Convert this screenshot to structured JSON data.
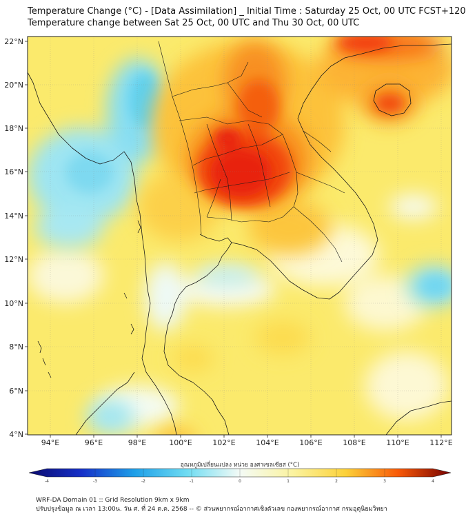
{
  "title": {
    "line1": "Temperature Change (°C) - [Data Assimilation] _ Initial Time : Saturday 25 Oct, 00 UTC FCST+120",
    "line2": "Temperature change between Sat 25 Oct, 00 UTC and Thu 30 Oct, 00 UTC"
  },
  "axes": {
    "lat_labels": [
      "22°N",
      "20°N",
      "18°N",
      "16°N",
      "14°N",
      "12°N",
      "10°N",
      "8°N",
      "6°N",
      "4°N"
    ],
    "lon_labels": [
      "94°E",
      "96°E",
      "98°E",
      "100°E",
      "102°E",
      "104°E",
      "106°E",
      "108°E",
      "110°E",
      "112°E"
    ]
  },
  "colorbar": {
    "title": "อุณหภูมิเปลี่ยนแปลง หน่วย องศาเซลเซียส (°C)",
    "ticks": [
      "-4",
      "-3",
      "-2",
      "-1",
      "0",
      "1",
      "2",
      "3",
      "4"
    ],
    "colors": {
      "neg4": "#0a0a6e",
      "neg3": "#1630c8",
      "neg2": "#1e9fe8",
      "neg1": "#6fdcf2",
      "zero": "#f4fbf6",
      "pos1": "#fbf3a0",
      "pos2": "#fcd23a",
      "pos3": "#f85a08",
      "pos4": "#760000"
    }
  },
  "map_colors": {
    "background": "#fbea6c",
    "land_border": "#1a1a1a"
  },
  "footer": {
    "line1": "WRF-DA Domain 01 :: Grid Resolution 9km x 9km",
    "line2": "ปรับปรุงข้อมูล ณ เวลา 13:00น. วัน ศ. ที่ 24 ต.ค. 2568 -- © ส่วนพยากรณ์อากาศเชิงตัวเลข กองพยากรณ์อากาศ กรมอุตุนิยมวิทยา"
  }
}
